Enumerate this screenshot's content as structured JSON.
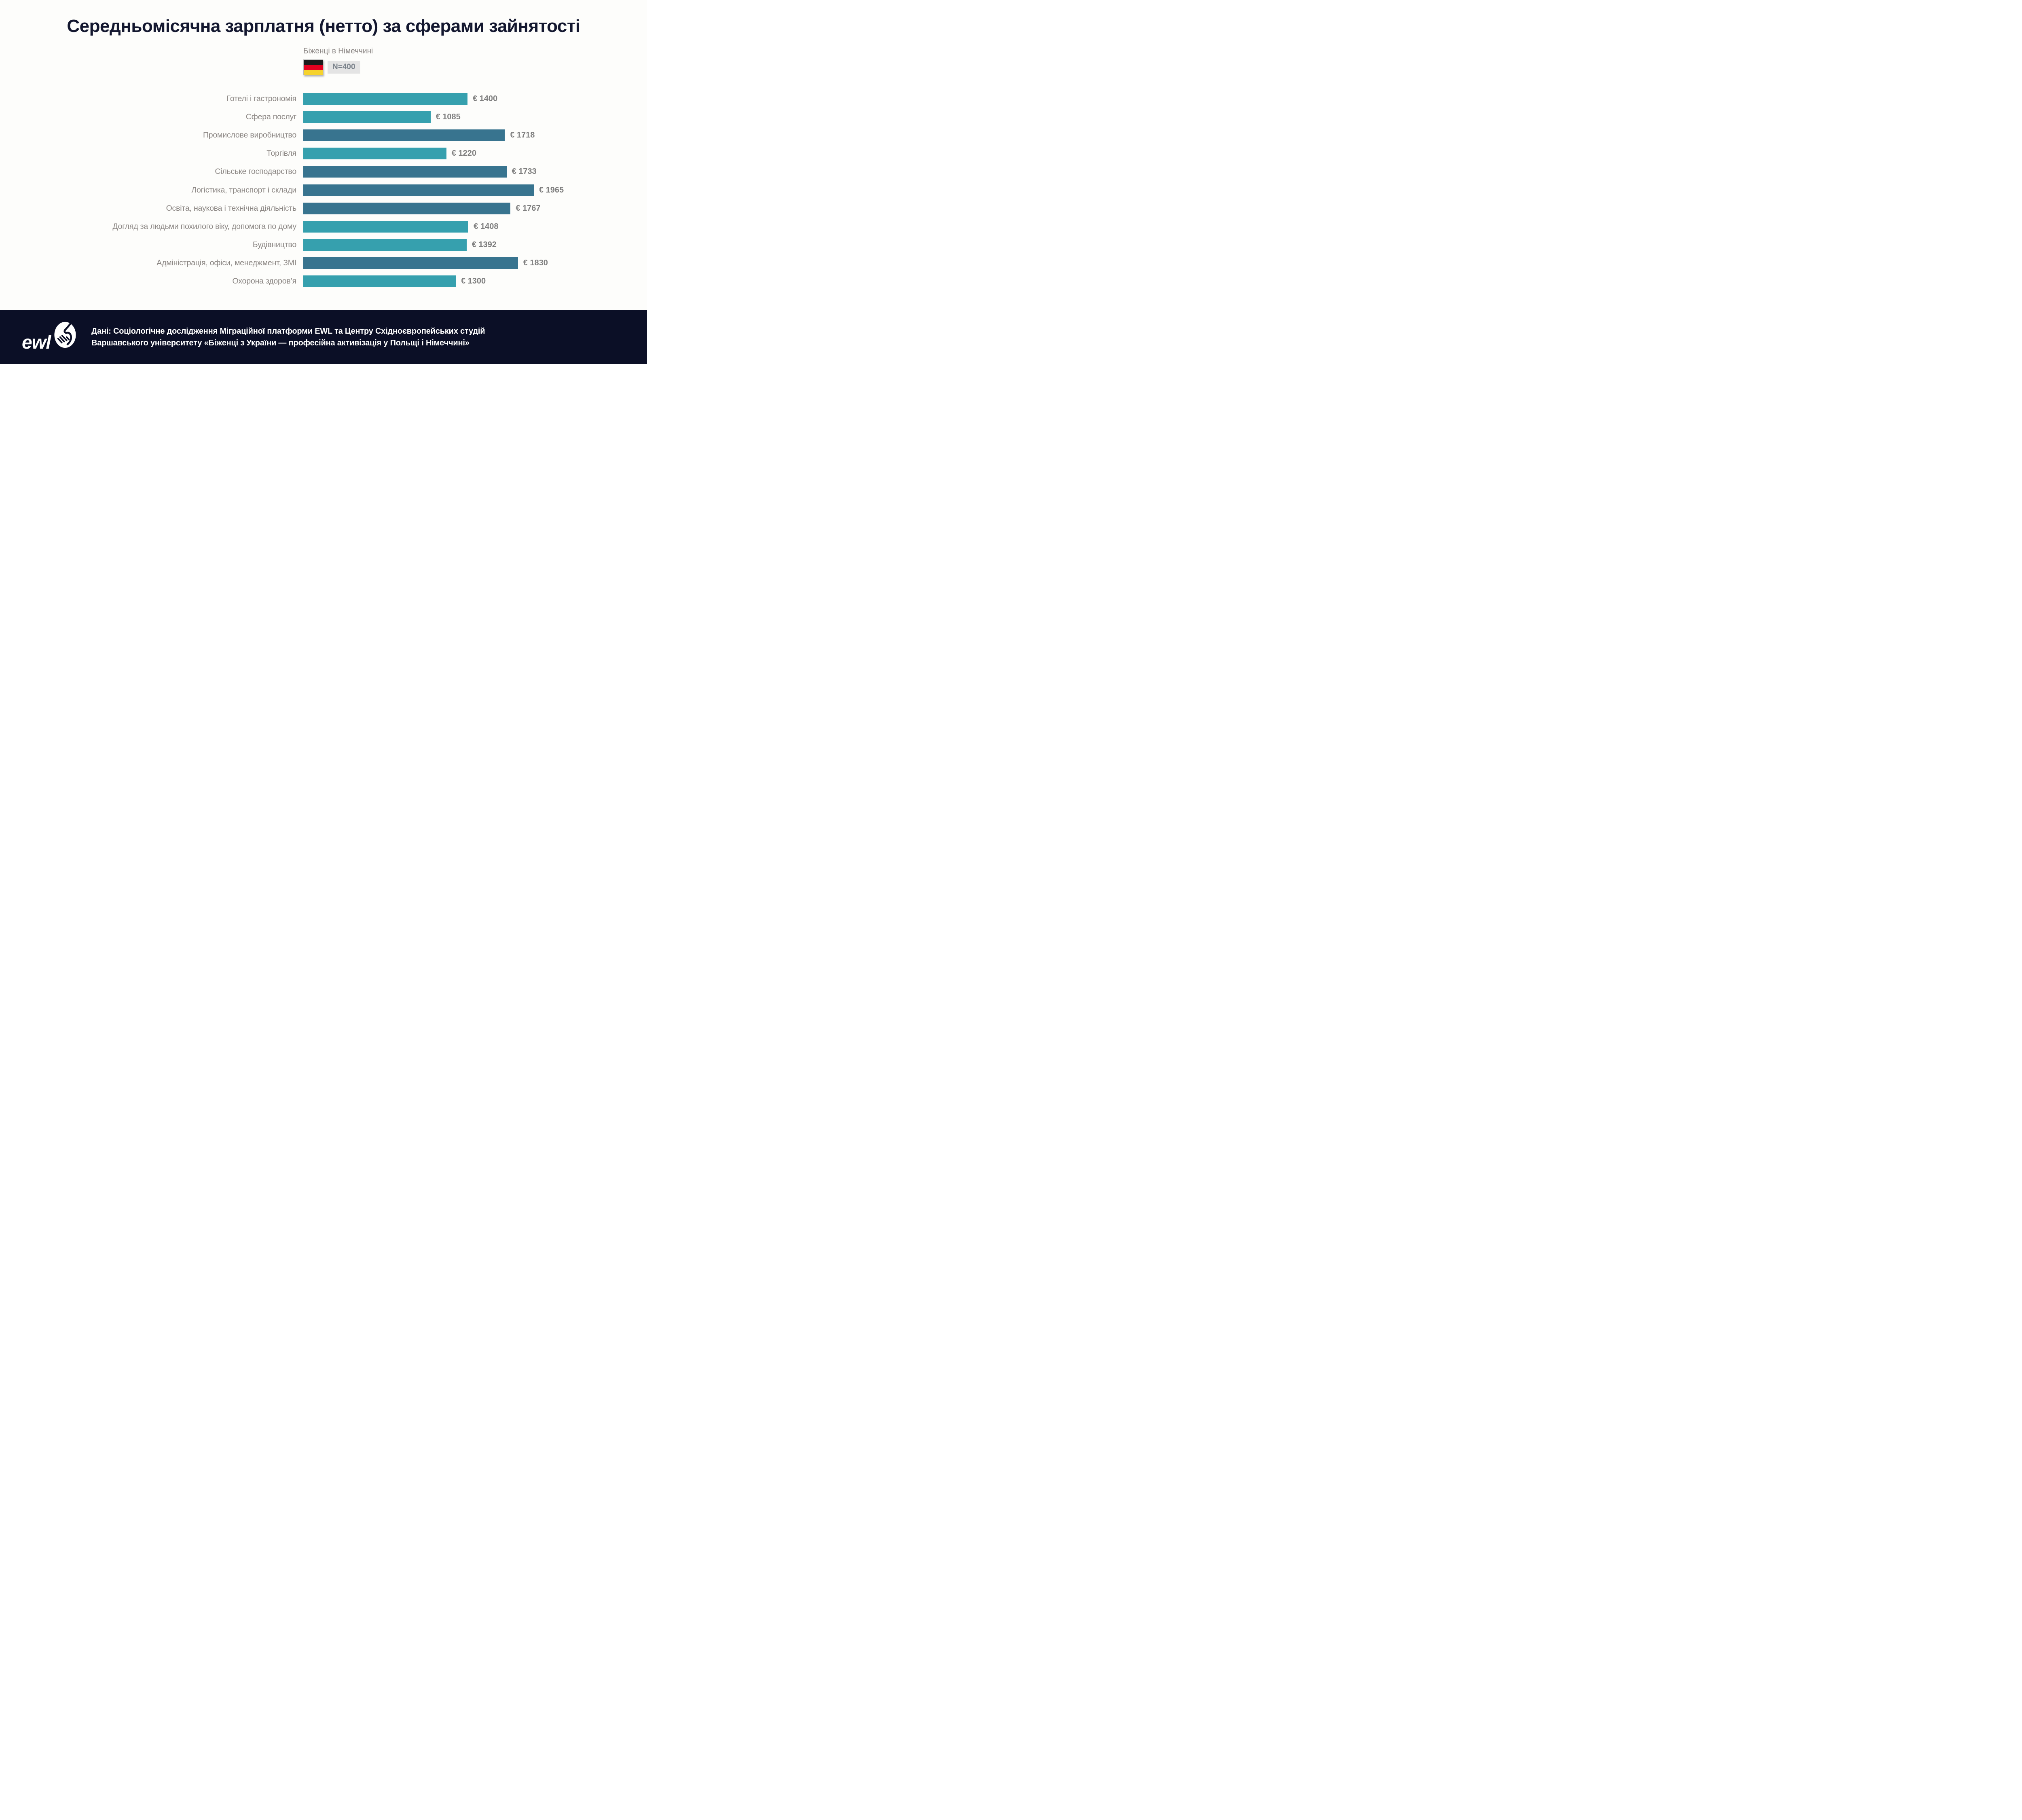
{
  "title": "Середньомісячна зарплатня (нетто) за сферами зайнятості",
  "legend": {
    "label": "Біженці в Німеччині",
    "flag_name": "germany-flag",
    "flag_colors": [
      "#1a1a1a",
      "#e2001f",
      "#f6d32d"
    ],
    "sample_size": "N=400"
  },
  "chart_data": {
    "type": "bar",
    "orientation": "horizontal",
    "title": "Середньомісячна зарплатня (нетто) за сферами зайнятості",
    "series_name": "Біженці в Німеччині (N=400)",
    "unit": "EUR",
    "xlim": [
      0,
      2000
    ],
    "grid": false,
    "legend_position": "top-center",
    "categories": [
      "Готелі і гастрономія",
      "Сфера послуг",
      "Промислове виробництво",
      "Торгівля",
      "Сільське господарство",
      "Логістика, транспорт і склади",
      "Освіта, наукова і технічна діяльність",
      "Догляд за людьми похилого віку, допомога по дому",
      "Будівництво",
      "Адміністрація, офіси, менеджмент, ЗМІ",
      "Охорона здоров’я"
    ],
    "values": [
      1400,
      1085,
      1718,
      1220,
      1733,
      1965,
      1767,
      1408,
      1392,
      1830,
      1300
    ],
    "value_labels": [
      "€ 1400",
      "€ 1085",
      "€ 1718",
      "€ 1220",
      "€ 1733",
      "€ 1965",
      "€ 1767",
      "€ 1408",
      "€ 1392",
      "€ 1830",
      "€ 1300"
    ],
    "bar_colors": [
      "teal",
      "teal",
      "dark",
      "teal",
      "dark",
      "dark",
      "dark",
      "teal",
      "teal",
      "dark",
      "teal"
    ],
    "palette": {
      "teal": "#36a0ae",
      "dark": "#38748f"
    }
  },
  "footer": {
    "logo_text": "ewl",
    "logo_icon": "handshake-icon",
    "background": "#0b0f26",
    "line1": "Дані: Соціологічне дослідження Міграційної платформи EWL та Центру Східноєвропейських студій",
    "line2": "Варшавського університету «Біженці з України — професійна активізація у Польщі і Німеччині»"
  },
  "colors": {
    "page_background": "#fdfdfb",
    "title_text": "#13172f",
    "category_label": "#8b8683",
    "value_label": "#7f7f7f",
    "legend_label": "#8a8583",
    "badge_background": "#e4e4e4",
    "badge_text": "#79818a"
  }
}
